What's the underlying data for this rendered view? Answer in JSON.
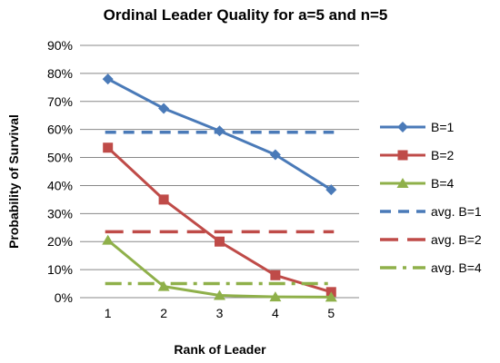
{
  "chart_data": {
    "type": "line",
    "title": "Ordinal Leader Quality for a=5 and n=5",
    "xlabel": "Rank of Leader",
    "ylabel": "Probability of Survival",
    "x": [
      1,
      2,
      3,
      4,
      5
    ],
    "ylim": [
      0,
      0.9
    ],
    "yticks": [
      0,
      0.1,
      0.2,
      0.3,
      0.4,
      0.5,
      0.6,
      0.7,
      0.8,
      0.9
    ],
    "ytick_labels": [
      "0%",
      "10%",
      "20%",
      "30%",
      "40%",
      "50%",
      "60%",
      "70%",
      "80%",
      "90%"
    ],
    "grid": "horizontal",
    "legend": "right",
    "series": [
      {
        "name": "B=1",
        "values": [
          0.78,
          0.675,
          0.595,
          0.51,
          0.385
        ],
        "color": "#4a7ab8",
        "marker": "diamond",
        "style": "solid"
      },
      {
        "name": "B=2",
        "values": [
          0.535,
          0.35,
          0.2,
          0.08,
          0.02
        ],
        "color": "#bf4b48",
        "marker": "square",
        "style": "solid"
      },
      {
        "name": "B=4",
        "values": [
          0.205,
          0.04,
          0.008,
          0.003,
          0.002
        ],
        "color": "#8fb04a",
        "marker": "triangle",
        "style": "solid"
      },
      {
        "name": "avg. B=1",
        "values": [
          0.59,
          0.59,
          0.59,
          0.59,
          0.59
        ],
        "color": "#4a7ab8",
        "marker": "none",
        "style": "dashed"
      },
      {
        "name": "avg. B=2",
        "values": [
          0.235,
          0.235,
          0.235,
          0.235,
          0.235
        ],
        "color": "#bf4b48",
        "marker": "none",
        "style": "longdash"
      },
      {
        "name": "avg. B=4",
        "values": [
          0.05,
          0.05,
          0.05,
          0.05,
          0.05
        ],
        "color": "#8fb04a",
        "marker": "none",
        "style": "dashdot"
      }
    ]
  }
}
